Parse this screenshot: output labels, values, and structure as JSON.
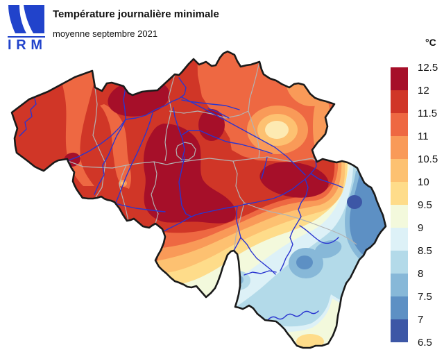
{
  "header": {
    "logo_text": "IRM",
    "title": "Température journalière minimale",
    "subtitle": "moyenne septembre 2021"
  },
  "legend": {
    "unit_label": "°C",
    "tick_labels": [
      "12.5",
      "12",
      "11.5",
      "11",
      "10.5",
      "10",
      "9.5",
      "9",
      "8.5",
      "8",
      "7.5",
      "7",
      "6.5"
    ],
    "colors_top_to_bottom": [
      "#a60f29",
      "#d03627",
      "#ee6842",
      "#f99a58",
      "#fdc171",
      "#fedc8a",
      "#f3f9dc",
      "#ddf1f7",
      "#b3dae9",
      "#87b8d8",
      "#5d90c4",
      "#3d57a6"
    ]
  },
  "map": {
    "colors": {
      "country_border": "#1a1a1a",
      "province_border": "#b3b3b3",
      "river": "#2a35d0",
      "background": "#ffffff",
      "bullseye_center": "#fdeab2"
    }
  }
}
